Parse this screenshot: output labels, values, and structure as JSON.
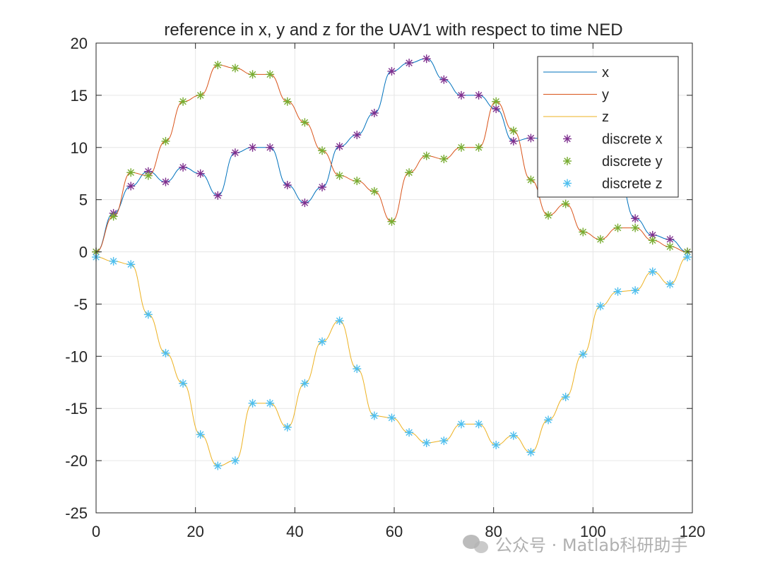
{
  "chart_data": {
    "type": "line",
    "title": "reference in x, y and z for the UAV1 with respect to time NED",
    "xlabel": "",
    "ylabel": "",
    "xlim": [
      0,
      120
    ],
    "ylim": [
      -25,
      20
    ],
    "xticks": [
      "0",
      "20",
      "40",
      "60",
      "80",
      "100",
      "120"
    ],
    "yticks": [
      "20",
      "15",
      "10",
      "5",
      "0",
      "-5",
      "-10",
      "-15",
      "-20",
      "-25"
    ],
    "grid": true,
    "legend_position": "top-right",
    "x": [
      0,
      3.5,
      7,
      10.5,
      14,
      17.5,
      21,
      24.5,
      28,
      31.5,
      35,
      38.5,
      42,
      45.5,
      49,
      52.5,
      56,
      59.5,
      63,
      66.5,
      70,
      73.5,
      77,
      80.5,
      84,
      87.5,
      91,
      94.5,
      98,
      101.5,
      105,
      108.5,
      112,
      115.5,
      119
    ],
    "series": [
      {
        "name": "x",
        "color": "#0072BD",
        "values": [
          0,
          3.7,
          6.3,
          7.7,
          6.7,
          8.1,
          7.5,
          5.4,
          9.5,
          10.0,
          10.0,
          6.4,
          4.7,
          6.2,
          10.1,
          11.2,
          13.3,
          17.3,
          18.1,
          18.5,
          16.5,
          15.0,
          15.0,
          13.7,
          10.6,
          10.9,
          10.8,
          9.7,
          8.6,
          8.3,
          7.4,
          3.2,
          1.6,
          1.2,
          0
        ]
      },
      {
        "name": "y",
        "color": "#D95319",
        "values": [
          0,
          3.4,
          7.6,
          7.3,
          10.6,
          14.4,
          15.0,
          17.9,
          17.6,
          17.0,
          17.0,
          14.4,
          12.4,
          9.7,
          7.3,
          6.8,
          5.8,
          2.9,
          7.6,
          9.2,
          8.9,
          10.0,
          10.0,
          14.4,
          11.6,
          6.9,
          3.5,
          4.6,
          1.9,
          1.2,
          2.3,
          2.3,
          1.1,
          0.5,
          0
        ]
      },
      {
        "name": "z",
        "color": "#EDB120",
        "values": [
          -0.5,
          -0.9,
          -1.2,
          -6.0,
          -9.7,
          -12.6,
          -17.5,
          -20.5,
          -20.0,
          -14.5,
          -14.5,
          -16.8,
          -12.6,
          -8.6,
          -6.6,
          -11.2,
          -15.7,
          -15.9,
          -17.3,
          -18.3,
          -18.1,
          -16.5,
          -16.5,
          -18.5,
          -17.6,
          -19.2,
          -16.1,
          -13.9,
          -9.8,
          -5.2,
          -3.8,
          -3.7,
          -1.9,
          -3.1,
          -0.5
        ]
      },
      {
        "name": "discrete x",
        "color": "#7E2F8E",
        "marker": "*"
      },
      {
        "name": "discrete y",
        "color": "#77AC30",
        "marker": "*"
      },
      {
        "name": "discrete z",
        "color": "#4DBEEE",
        "marker": "*"
      }
    ]
  },
  "watermark": {
    "text": "公众号 · Matlab科研助手"
  }
}
